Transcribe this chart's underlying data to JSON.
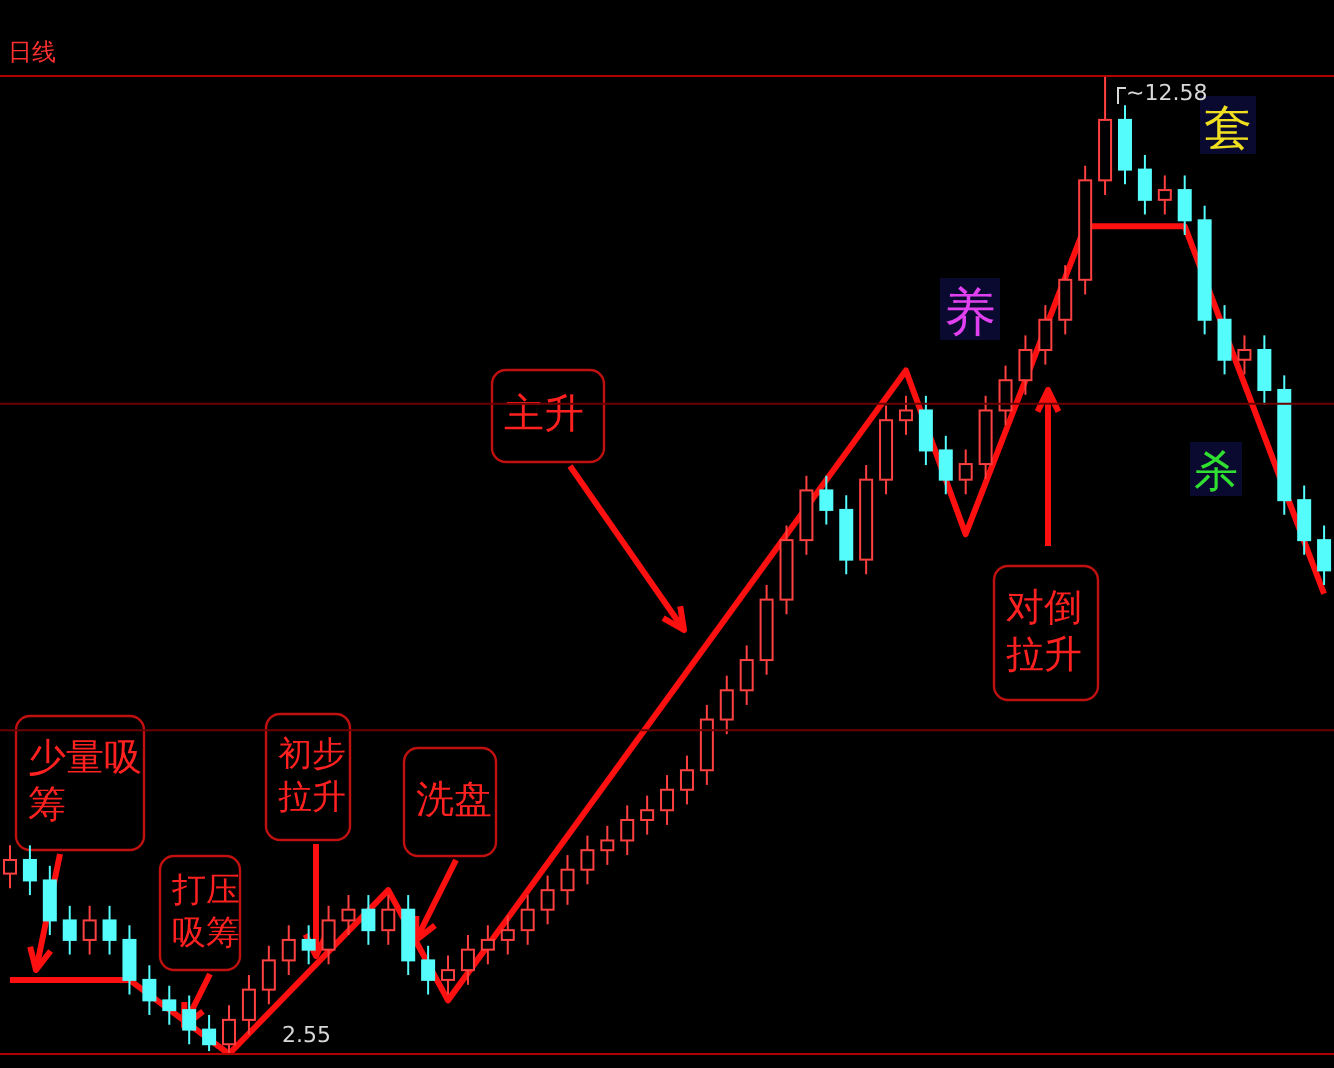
{
  "chart_data": {
    "type": "candlestick",
    "subtitle": "日线",
    "categories": [
      null,
      null,
      null,
      null,
      null,
      null,
      null,
      null,
      null,
      null,
      null,
      null,
      null,
      null,
      null,
      null,
      null,
      null,
      null,
      null,
      null,
      null,
      null,
      null,
      null,
      null,
      null,
      null,
      null,
      null,
      null,
      null,
      null,
      null,
      null,
      null,
      null,
      null,
      null,
      null,
      null,
      null,
      null,
      null,
      null,
      null,
      null,
      null,
      null,
      null,
      null,
      null,
      null,
      null,
      null,
      null,
      null,
      null,
      null,
      null,
      null,
      null,
      null,
      null,
      null,
      null,
      null
    ],
    "ohlc": [
      [
        4.4,
        4.69,
        4.25,
        4.54
      ],
      [
        4.54,
        4.69,
        4.18,
        4.33
      ],
      [
        4.33,
        4.48,
        3.77,
        3.92
      ],
      [
        3.92,
        4.07,
        3.57,
        3.72
      ],
      [
        3.72,
        4.07,
        3.57,
        3.92
      ],
      [
        3.92,
        4.07,
        3.57,
        3.72
      ],
      [
        3.72,
        3.87,
        3.16,
        3.31
      ],
      [
        3.31,
        3.46,
        2.95,
        3.1
      ],
      [
        3.1,
        3.25,
        2.85,
        3.0
      ],
      [
        3.0,
        3.15,
        2.65,
        2.8
      ],
      [
        2.8,
        2.95,
        2.58,
        2.65
      ],
      [
        2.65,
        3.05,
        2.55,
        2.9
      ],
      [
        2.9,
        3.36,
        2.75,
        3.21
      ],
      [
        3.21,
        3.66,
        3.06,
        3.51
      ],
      [
        3.51,
        3.87,
        3.36,
        3.72
      ],
      [
        3.72,
        3.87,
        3.47,
        3.62
      ],
      [
        3.62,
        4.07,
        3.47,
        3.92
      ],
      [
        3.92,
        4.18,
        3.77,
        4.03
      ],
      [
        4.03,
        4.18,
        3.67,
        3.82
      ],
      [
        3.82,
        4.18,
        3.67,
        4.03
      ],
      [
        4.03,
        4.18,
        3.36,
        3.51
      ],
      [
        3.51,
        3.66,
        3.16,
        3.31
      ],
      [
        3.31,
        3.56,
        3.16,
        3.41
      ],
      [
        3.41,
        3.77,
        3.26,
        3.62
      ],
      [
        3.62,
        3.87,
        3.47,
        3.72
      ],
      [
        3.72,
        3.97,
        3.57,
        3.82
      ],
      [
        3.82,
        4.18,
        3.67,
        4.03
      ],
      [
        4.03,
        4.38,
        3.88,
        4.23
      ],
      [
        4.23,
        4.59,
        4.08,
        4.44
      ],
      [
        4.44,
        4.79,
        4.29,
        4.64
      ],
      [
        4.64,
        4.89,
        4.49,
        4.74
      ],
      [
        4.74,
        5.1,
        4.59,
        4.95
      ],
      [
        4.95,
        5.2,
        4.8,
        5.05
      ],
      [
        5.05,
        5.41,
        4.9,
        5.26
      ],
      [
        5.26,
        5.61,
        5.11,
        5.46
      ],
      [
        5.46,
        6.13,
        5.31,
        5.98
      ],
      [
        5.98,
        6.43,
        5.83,
        6.28
      ],
      [
        6.28,
        6.74,
        6.13,
        6.59
      ],
      [
        6.59,
        7.36,
        6.44,
        7.21
      ],
      [
        7.21,
        7.97,
        7.06,
        7.82
      ],
      [
        7.82,
        8.48,
        7.67,
        8.33
      ],
      [
        8.33,
        8.48,
        7.98,
        8.13
      ],
      [
        8.13,
        8.28,
        7.47,
        7.62
      ],
      [
        7.62,
        8.59,
        7.47,
        8.44
      ],
      [
        8.44,
        9.2,
        8.29,
        9.05
      ],
      [
        9.05,
        9.3,
        8.9,
        9.15
      ],
      [
        9.15,
        9.3,
        8.59,
        8.74
      ],
      [
        8.74,
        8.89,
        8.29,
        8.44
      ],
      [
        8.44,
        8.75,
        8.29,
        8.6
      ],
      [
        8.6,
        9.3,
        8.45,
        9.15
      ],
      [
        9.15,
        9.61,
        9.0,
        9.46
      ],
      [
        9.46,
        9.92,
        9.31,
        9.77
      ],
      [
        9.77,
        10.23,
        9.62,
        10.08
      ],
      [
        10.08,
        10.64,
        9.93,
        10.49
      ],
      [
        10.49,
        11.66,
        10.34,
        11.51
      ],
      [
        11.51,
        12.58,
        11.36,
        12.13
      ],
      [
        12.13,
        12.28,
        11.47,
        11.62
      ],
      [
        11.62,
        11.77,
        11.16,
        11.31
      ],
      [
        11.31,
        11.56,
        11.16,
        11.41
      ],
      [
        11.41,
        11.56,
        10.95,
        11.1
      ],
      [
        11.1,
        11.25,
        9.93,
        10.08
      ],
      [
        10.08,
        10.23,
        9.52,
        9.67
      ],
      [
        9.67,
        9.92,
        9.52,
        9.77
      ],
      [
        9.77,
        9.92,
        9.21,
        9.36
      ],
      [
        9.36,
        9.51,
        8.08,
        8.23
      ],
      [
        8.23,
        8.38,
        7.67,
        7.82
      ],
      [
        7.82,
        7.97,
        7.36,
        7.51
      ]
    ],
    "series": [
      {
        "type": "line",
        "color": "#ff1010",
        "values": [
          3.31,
          null,
          null,
          null,
          null,
          null,
          3.31,
          null,
          null,
          null,
          null,
          2.55,
          null,
          null,
          null,
          null,
          null,
          null,
          null,
          4.23,
          null,
          null,
          3.1,
          null,
          null,
          null,
          null,
          null,
          null,
          null,
          null,
          null,
          null,
          null,
          null,
          null,
          null,
          null,
          null,
          null,
          null,
          null,
          null,
          null,
          null,
          9.56,
          null,
          null,
          7.88,
          null,
          null,
          null,
          null,
          null,
          11.04,
          null,
          null,
          null,
          null,
          11.04,
          null,
          null,
          null,
          null,
          null,
          null,
          7.27
        ]
      }
    ],
    "ylim": [
      2.55,
      12.58
    ],
    "yticks": [
      {
        "value": 5.87,
        "label": null
      },
      {
        "value": 9.22,
        "label": null
      }
    ],
    "grid": "y",
    "tick_labels": false,
    "annotations": [
      "少量吸筹",
      "打压吸筹",
      "初步拉升",
      "洗盘",
      "主升",
      "对倒拉升",
      "养",
      "套",
      "杀",
      "~12.58",
      "2.55"
    ]
  }
}
